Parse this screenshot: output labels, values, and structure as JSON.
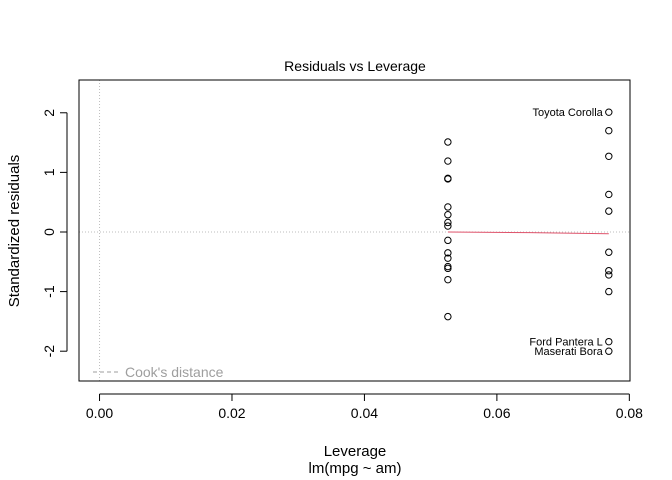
{
  "chart_data": {
    "type": "scatter",
    "title": "Residuals vs Leverage",
    "xlabel": "Leverage",
    "xsublabel": "lm(mpg ~ am)",
    "ylabel": "Standardized residuals",
    "xlim": [
      -0.0031,
      0.0801
    ],
    "ylim": [
      -2.5,
      2.55
    ],
    "x_ticks": [
      {
        "value": 0.0,
        "label": "0.00"
      },
      {
        "value": 0.02,
        "label": "0.02"
      },
      {
        "value": 0.04,
        "label": "0.04"
      },
      {
        "value": 0.06,
        "label": "0.06"
      },
      {
        "value": 0.08,
        "label": "0.08"
      }
    ],
    "y_ticks": [
      {
        "value": -2,
        "label": "-2"
      },
      {
        "value": -1,
        "label": "-1"
      },
      {
        "value": 0,
        "label": "0"
      },
      {
        "value": 1,
        "label": "1"
      },
      {
        "value": 2,
        "label": "2"
      }
    ],
    "points": [
      {
        "x": 0.0526,
        "y": 1.51
      },
      {
        "x": 0.0526,
        "y": 1.19
      },
      {
        "x": 0.0526,
        "y": 0.9
      },
      {
        "x": 0.0526,
        "y": 0.89
      },
      {
        "x": 0.0526,
        "y": 0.42
      },
      {
        "x": 0.0526,
        "y": 0.29
      },
      {
        "x": 0.0526,
        "y": 0.16
      },
      {
        "x": 0.0526,
        "y": 0.1
      },
      {
        "x": 0.0526,
        "y": -0.14
      },
      {
        "x": 0.0526,
        "y": -0.35
      },
      {
        "x": 0.0526,
        "y": -0.44
      },
      {
        "x": 0.0526,
        "y": -0.58
      },
      {
        "x": 0.0526,
        "y": -0.61
      },
      {
        "x": 0.0526,
        "y": -0.8
      },
      {
        "x": 0.0526,
        "y": -1.42
      },
      {
        "x": 0.0769,
        "y": 2.01
      },
      {
        "x": 0.0769,
        "y": 1.7
      },
      {
        "x": 0.0769,
        "y": 1.27
      },
      {
        "x": 0.0769,
        "y": 0.63
      },
      {
        "x": 0.0769,
        "y": 0.35
      },
      {
        "x": 0.0769,
        "y": -0.34
      },
      {
        "x": 0.0769,
        "y": -0.65
      },
      {
        "x": 0.0769,
        "y": -0.72
      },
      {
        "x": 0.0769,
        "y": -1.0
      },
      {
        "x": 0.0769,
        "y": -1.84
      },
      {
        "x": 0.0769,
        "y": -2.0
      }
    ],
    "labeled_points": [
      {
        "label": "Toyota Corolla",
        "x": 0.0769,
        "y": 2.01
      },
      {
        "label": "Ford Pantera L",
        "x": 0.0769,
        "y": -1.84
      },
      {
        "label": "Maserati Bora",
        "x": 0.0769,
        "y": -2.0
      }
    ],
    "smoother": [
      {
        "x": 0.0526,
        "y": 0.0
      },
      {
        "x": 0.065,
        "y": -0.01
      },
      {
        "x": 0.0769,
        "y": -0.03
      }
    ],
    "smoother_color": "#df536b",
    "reference_line_color": "#bebebe",
    "legend": {
      "label": "Cook's distance",
      "position": "bottom-left",
      "color": "#9e9e9e"
    },
    "grid": false
  }
}
